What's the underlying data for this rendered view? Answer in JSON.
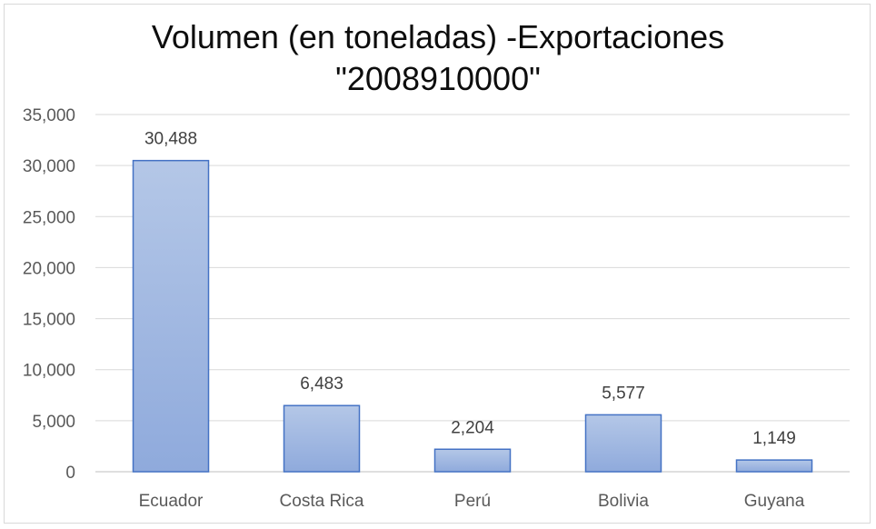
{
  "chart_data": {
    "type": "bar",
    "title": "Volumen (en toneladas) -Exportaciones",
    "subtitle": "\"2008910000\"",
    "xlabel": "",
    "ylabel": "",
    "categories": [
      "Ecuador",
      "Costa Rica",
      "Perú",
      "Bolivia",
      "Guyana"
    ],
    "values": [
      30488,
      6483,
      2204,
      5577,
      1149
    ],
    "data_labels": [
      "30,488",
      "6,483",
      "2,204",
      "5,577",
      "1,149"
    ],
    "ylim": [
      0,
      35000
    ],
    "yticks": [
      0,
      5000,
      10000,
      15000,
      20000,
      25000,
      30000,
      35000
    ],
    "ytick_labels": [
      "0",
      "5,000",
      "10,000",
      "15,000",
      "20,000",
      "25,000",
      "30,000",
      "35,000"
    ],
    "grid": true,
    "legend": "none",
    "colors": {
      "bar_top": "#b4c7e7",
      "bar_bottom": "#8faadc",
      "bar_border": "#4472c4",
      "grid": "#d9d9d9",
      "axis": "#bfbfbf"
    }
  }
}
